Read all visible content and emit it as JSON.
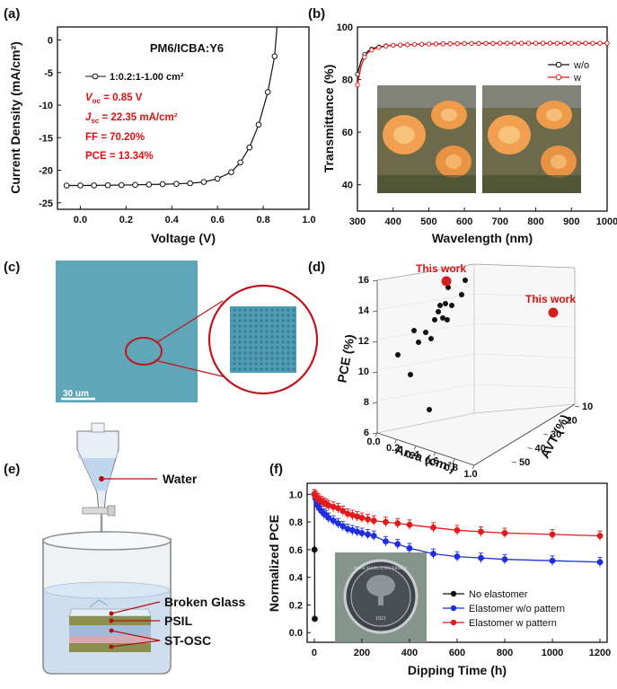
{
  "colors": {
    "black": "#111111",
    "red": "#e31a1c",
    "blue": "#1f2fe0",
    "micro": "#5aa2b4",
    "accent_red": "#c0161b"
  },
  "panel_labels": [
    "(a)",
    "(b)",
    "(c)",
    "(d)",
    "(e)",
    "(f)"
  ],
  "chart_data": [
    {
      "id": "a",
      "type": "line",
      "title": "PM6/ICBA:Y6",
      "xlabel": "Voltage (V)",
      "ylabel": "Current Density (mA/cm²)",
      "xlim": [
        -0.1,
        1.0
      ],
      "ylim": [
        -26,
        2
      ],
      "xticks": [
        "0.0",
        "0.2",
        "0.4",
        "0.6",
        "0.8",
        "1.0"
      ],
      "yticks": [
        "0",
        "-5",
        "-10",
        "-15",
        "-20",
        "-25"
      ],
      "series": [
        {
          "name": "1:0.2:1-1.00 cm²",
          "x": [
            -0.06,
            0.0,
            0.06,
            0.12,
            0.18,
            0.24,
            0.3,
            0.36,
            0.42,
            0.48,
            0.54,
            0.6,
            0.66,
            0.7,
            0.74,
            0.78,
            0.82,
            0.85
          ],
          "y": [
            -22.35,
            -22.34,
            -22.33,
            -22.31,
            -22.28,
            -22.25,
            -22.2,
            -22.15,
            -22.1,
            -22.0,
            -21.8,
            -21.3,
            -20.3,
            -18.8,
            -16.5,
            -13.0,
            -8.0,
            -2.5
          ]
        }
      ],
      "annotations": {
        "voc": " = 0.85 V",
        "jsc": " = 22.35 mA/cm²",
        "ff": "FF = 70.20%",
        "pce": "PCE = 13.34%"
      }
    },
    {
      "id": "b",
      "type": "line",
      "xlabel": "Wavelength (nm)",
      "ylabel": "Transmittance (%)",
      "xlim": [
        300,
        1000
      ],
      "ylim": [
        30,
        100
      ],
      "xticks": [
        "300",
        "400",
        "500",
        "600",
        "700",
        "800",
        "900",
        "1000"
      ],
      "yticks": [
        "40",
        "60",
        "80",
        "100"
      ],
      "series": [
        {
          "name": "w/o",
          "x": [
            300,
            310,
            320,
            330,
            340,
            350,
            360,
            380,
            400,
            450,
            500,
            600,
            700,
            800,
            900,
            1000
          ],
          "y": [
            82,
            87,
            89.5,
            90.8,
            91.6,
            92.1,
            92.4,
            92.8,
            93.0,
            93.3,
            93.5,
            93.7,
            93.8,
            93.8,
            93.8,
            93.8
          ]
        },
        {
          "name": "w",
          "x": [
            300,
            310,
            320,
            330,
            340,
            350,
            360,
            380,
            400,
            450,
            500,
            600,
            700,
            800,
            900,
            1000
          ],
          "y": [
            78,
            85,
            88.5,
            90.3,
            91.2,
            91.8,
            92.2,
            92.7,
            93.0,
            93.3,
            93.5,
            93.7,
            93.8,
            93.8,
            93.8,
            93.8
          ]
        }
      ]
    },
    {
      "id": "d",
      "type": "scatter",
      "xlabel": "Area (cm²)",
      "ylabel": "PCE (%)",
      "zlabel": "AVT (%)",
      "pce_ticks": [
        "6",
        "8",
        "10",
        "12",
        "14",
        "16"
      ],
      "area_ticks": [
        "0.0",
        "0.2",
        "0.4",
        "0.6",
        "0.8",
        "1.0"
      ],
      "avt_ticks": [
        "10",
        "20",
        "30",
        "40",
        "50"
      ],
      "points_px_note": "",
      "this_work_label": "This work"
    },
    {
      "id": "f",
      "type": "line",
      "xlabel": "Dipping Time (h)",
      "ylabel": "Normalized PCE",
      "xlim": [
        -30,
        1230
      ],
      "ylim": [
        -0.07,
        1.08
      ],
      "xticks": [
        "0",
        "200",
        "400",
        "600",
        "800",
        "1000",
        "1200"
      ],
      "yticks": [
        "0.0",
        "0.2",
        "0.4",
        "0.6",
        "0.8",
        "1.0"
      ],
      "series": [
        {
          "name": "No elastomer",
          "x": [
            0,
            1,
            2
          ],
          "y": [
            1.0,
            0.6,
            0.1
          ]
        },
        {
          "name": "Elastomer w/o pattern",
          "x": [
            0,
            5,
            10,
            15,
            20,
            30,
            40,
            50,
            60,
            80,
            100,
            120,
            140,
            160,
            180,
            200,
            225,
            250,
            300,
            350,
            400,
            500,
            600,
            700,
            800,
            1000,
            1200
          ],
          "y": [
            1.0,
            0.97,
            0.94,
            0.92,
            0.9,
            0.88,
            0.86,
            0.85,
            0.83,
            0.81,
            0.79,
            0.77,
            0.75,
            0.74,
            0.73,
            0.72,
            0.71,
            0.7,
            0.66,
            0.64,
            0.61,
            0.57,
            0.55,
            0.54,
            0.53,
            0.52,
            0.51
          ]
        },
        {
          "name": "Elastomer w pattern",
          "x": [
            0,
            5,
            10,
            15,
            20,
            30,
            40,
            50,
            60,
            80,
            100,
            120,
            140,
            160,
            180,
            200,
            225,
            250,
            300,
            350,
            400,
            500,
            600,
            700,
            800,
            1000,
            1200
          ],
          "y": [
            1.0,
            0.99,
            0.98,
            0.97,
            0.96,
            0.95,
            0.94,
            0.93,
            0.92,
            0.91,
            0.9,
            0.88,
            0.86,
            0.85,
            0.84,
            0.83,
            0.82,
            0.81,
            0.8,
            0.79,
            0.78,
            0.76,
            0.74,
            0.73,
            0.72,
            0.71,
            0.7
          ]
        }
      ]
    }
  ],
  "panel_a": {
    "voc_sym": "V",
    "voc_sub": "oc",
    "jsc_sym": "J",
    "jsc_sub": "sc"
  },
  "panel_c": {
    "scalebar": "30 um"
  },
  "panel_e": {
    "water": "Water",
    "broken_glass": "Broken Glass",
    "psil": "PSIL",
    "st_osc": "ST-OSC"
  },
  "panel_f_inset": {
    "seal_text": "NANCHANG UNIVERSITY",
    "year": "1921"
  }
}
